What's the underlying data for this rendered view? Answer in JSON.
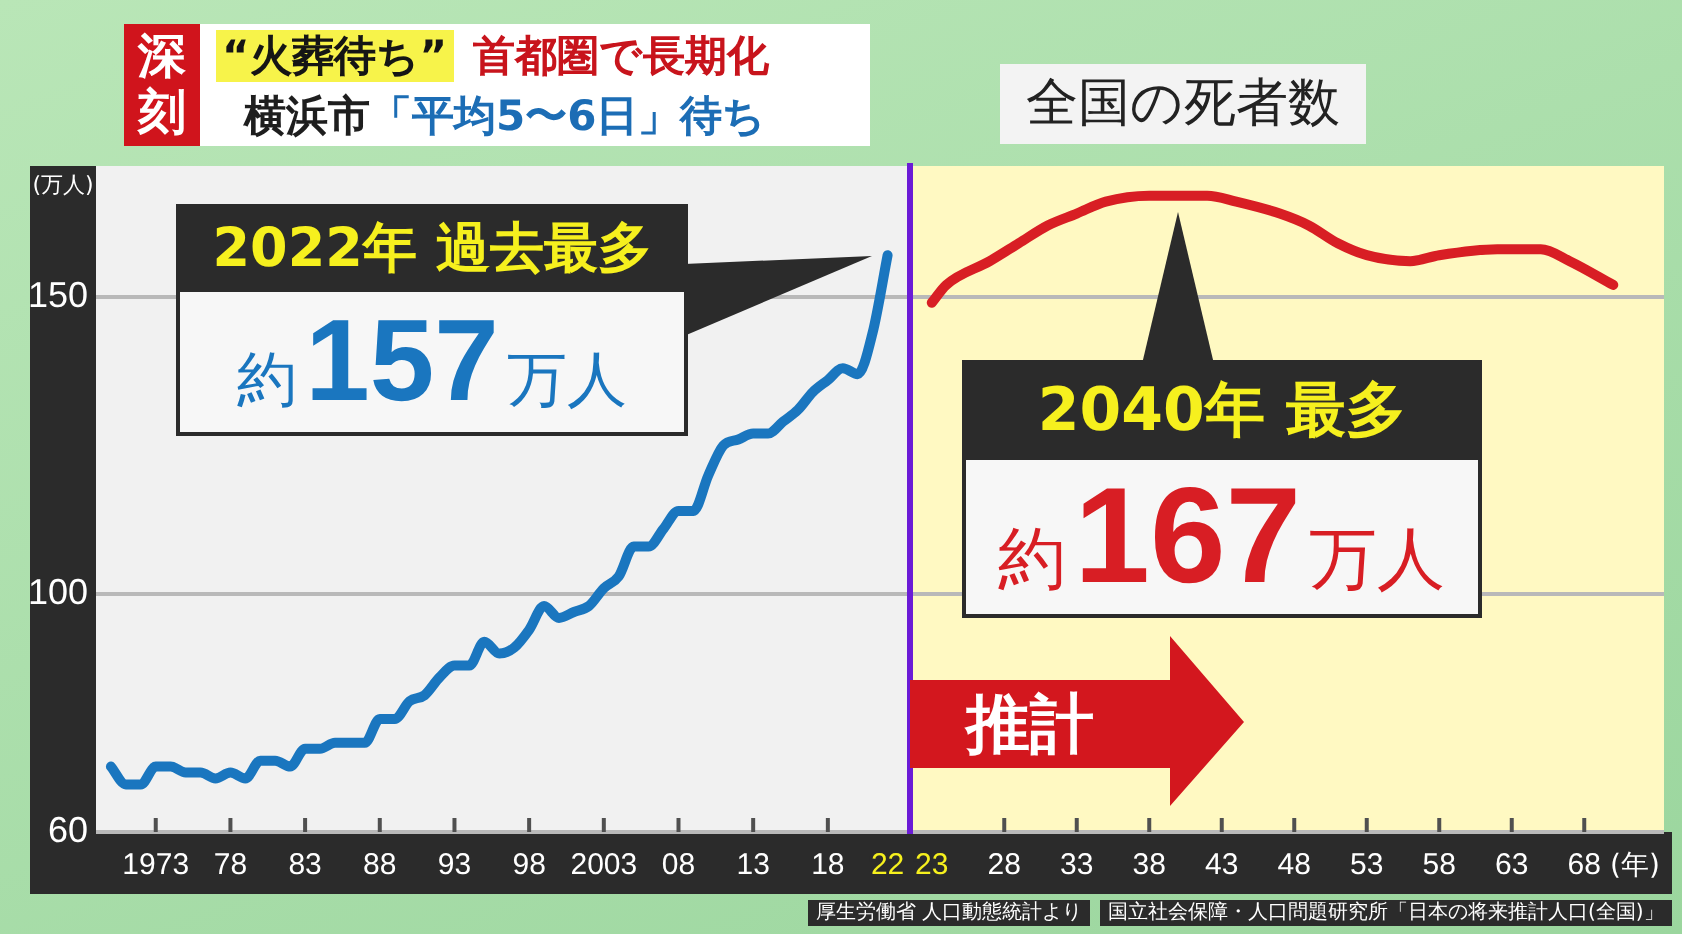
{
  "chart_data": [
    {
      "type": "line",
      "ylabel": "(万人)",
      "x": [
        1970,
        1971,
        1972,
        1973,
        1974,
        1975,
        1976,
        1977,
        1978,
        1979,
        1980,
        1981,
        1982,
        1983,
        1984,
        1985,
        1986,
        1987,
        1988,
        1989,
        1990,
        1991,
        1992,
        1993,
        1994,
        1995,
        1996,
        1997,
        1998,
        1999,
        2000,
        2001,
        2002,
        2003,
        2004,
        2005,
        2006,
        2007,
        2008,
        2009,
        2010,
        2011,
        2012,
        2013,
        2014,
        2015,
        2016,
        2017,
        2018,
        2019,
        2020,
        2021,
        2022
      ],
      "series": [
        {
          "color": "#1a76bf",
          "values": [
            71,
            68,
            68,
            71,
            71,
            70,
            70,
            69,
            70,
            69,
            72,
            72,
            71,
            74,
            74,
            75,
            75,
            75,
            79,
            79,
            82,
            83,
            86,
            88,
            88,
            92,
            90,
            91,
            94,
            98,
            96,
            97,
            98,
            101,
            103,
            108,
            108,
            111,
            114,
            114,
            120,
            125,
            126,
            127,
            127,
            129,
            131,
            134,
            136,
            138,
            137,
            144,
            157
          ]
        }
      ],
      "xlim": [
        1969,
        2023.5
      ],
      "xticks": [
        1973,
        {
          "value": 1978,
          "label": "78"
        },
        {
          "value": 1983,
          "label": "83"
        },
        {
          "value": 1988,
          "label": "88"
        },
        {
          "value": 1993,
          "label": "93"
        },
        {
          "value": 1998,
          "label": "98"
        },
        2003,
        {
          "value": 2008,
          "label": "08"
        },
        {
          "value": 2013,
          "label": "13"
        },
        {
          "value": 2018,
          "label": "18"
        },
        {
          "value": 2022,
          "label": "22"
        }
      ],
      "ylim": [
        60,
        172
      ],
      "yticks": [
        60,
        100,
        150
      ],
      "grid": "y",
      "annotations": [
        "深刻",
        "“火葬待ち”",
        "首都圏で長期化",
        "横浜市",
        "「平均5〜6日」待ち",
        {
          "text": "2022年 過去最多",
          "x": 2022,
          "y": 157
        },
        "約157万人",
        "厚生労働省 人口動態統計より"
      ]
    },
    {
      "type": "line",
      "title": "全国の死者数",
      "xlabel": "(年)",
      "x": [
        2023,
        2024,
        2027,
        2029,
        2031,
        2033,
        2035,
        2038,
        2040,
        2042,
        2044,
        2047,
        2049,
        2051,
        2053,
        2056,
        2058,
        2062,
        2065,
        2067,
        2070
      ],
      "series": [
        {
          "color": "#d81e24",
          "values": [
            149,
            152,
            156,
            159,
            162,
            164,
            166,
            167,
            167,
            167,
            166,
            164,
            162,
            159,
            157,
            156,
            157,
            158,
            158,
            156,
            152
          ]
        }
      ],
      "xlim": [
        2021.5,
        2073.5
      ],
      "xticks": [
        {
          "value": 2023,
          "label": "23"
        },
        {
          "value": 2028,
          "label": "28"
        },
        {
          "value": 2033,
          "label": "33"
        },
        {
          "value": 2038,
          "label": "38"
        },
        {
          "value": 2043,
          "label": "43"
        },
        {
          "value": 2048,
          "label": "48"
        },
        {
          "value": 2053,
          "label": "53"
        },
        {
          "value": 2058,
          "label": "58"
        },
        {
          "value": 2063,
          "label": "63"
        },
        {
          "value": 2068,
          "label": "68"
        }
      ],
      "ylim": [
        60,
        172
      ],
      "yticks": [
        60,
        100,
        150
      ],
      "grid": "y",
      "tick_labels": "x",
      "annotations": [
        {
          "text": "2040年 最多",
          "x": 2040,
          "y": 167
        },
        "約167万人",
        "推計",
        "国立社会保障・人口問題研究所「日本の将来推計人口(全国)」"
      ]
    }
  ]
}
